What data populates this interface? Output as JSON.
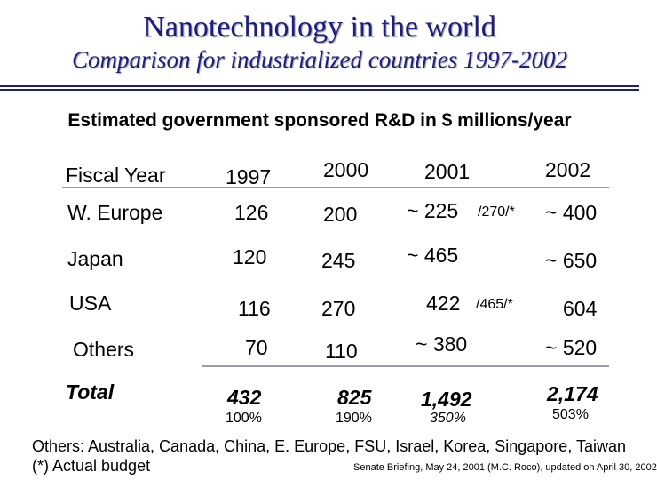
{
  "header": {
    "title": "Nanotechnology in the world",
    "subtitle": "Comparison for industrialized countries 1997-2002"
  },
  "heading": "Estimated government sponsored R&D in $ millions/year",
  "table": {
    "col_label": "Fiscal Year",
    "years": [
      "1997",
      "2000",
      "2001",
      "2002"
    ],
    "rows": [
      {
        "region": "W. Europe",
        "v1997": "126",
        "v2000": "200",
        "v2001": "~ 225",
        "actual": "/270/*",
        "v2002": "~ 400"
      },
      {
        "region": "Japan",
        "v1997": "120",
        "v2000": "245",
        "v2001": "~ 465",
        "actual": "",
        "v2002": "~ 650"
      },
      {
        "region": "USA",
        "v1997": "116",
        "v2000": "270",
        "v2001": "422",
        "actual": "/465/*",
        "v2002": "604"
      },
      {
        "region": "Others",
        "v1997": "70",
        "v2000": "110",
        "v2001": "~ 380",
        "actual": "",
        "v2002": "~ 520"
      }
    ],
    "total": {
      "label": "Total",
      "v1997": "432",
      "v2000": "825",
      "v2001": "1,492",
      "v2002": "2,174"
    },
    "percent": {
      "v1997": "100%",
      "v2000": "190%",
      "v2001": "350%",
      "v2002": "503%"
    }
  },
  "footer": {
    "others_note": "Others: Australia, Canada, China, E. Europe, FSU, Israel, Korea, Singapore, Taiwan",
    "actual_note": "(*) Actual budget",
    "credit": "Senate Briefing, May 24, 2001 (M.C. Roco), updated on April 30, 2002"
  }
}
